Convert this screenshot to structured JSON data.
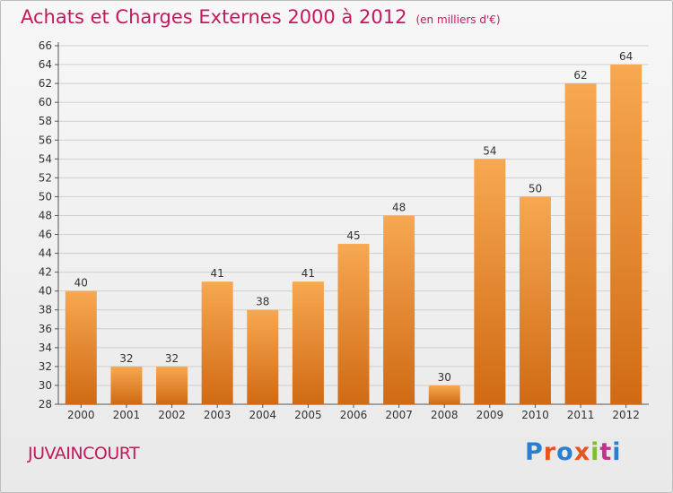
{
  "header": {
    "title": "Achats et Charges Externes 2000 à 2012",
    "unit": "(en milliers d'€)"
  },
  "footer": {
    "town": "JUVAINCOURT",
    "brand": "Proxiti",
    "brand_colors": [
      "#2a7fd1",
      "#e8541d",
      "#2a7fd1",
      "#e8541d",
      "#7cbf2a",
      "#c62f8d",
      "#2a7fd1"
    ]
  },
  "colors": {
    "title": "#c8165f",
    "bar_light": "#f7a851",
    "bar_dark": "#d06a14",
    "grid": "#cfcfcf",
    "axis": "#555555"
  },
  "chart_data": {
    "type": "bar",
    "categories": [
      "2000",
      "2001",
      "2002",
      "2003",
      "2004",
      "2005",
      "2006",
      "2007",
      "2008",
      "2009",
      "2010",
      "2011",
      "2012"
    ],
    "values": [
      40,
      32,
      32,
      41,
      38,
      41,
      45,
      48,
      30,
      54,
      50,
      62,
      64
    ],
    "ylim": [
      28,
      66
    ],
    "yticks": [
      28,
      30,
      32,
      34,
      36,
      38,
      40,
      42,
      44,
      46,
      48,
      50,
      52,
      54,
      56,
      58,
      60,
      62,
      64,
      66
    ],
    "grid": true,
    "xlabel": "",
    "ylabel": ""
  }
}
